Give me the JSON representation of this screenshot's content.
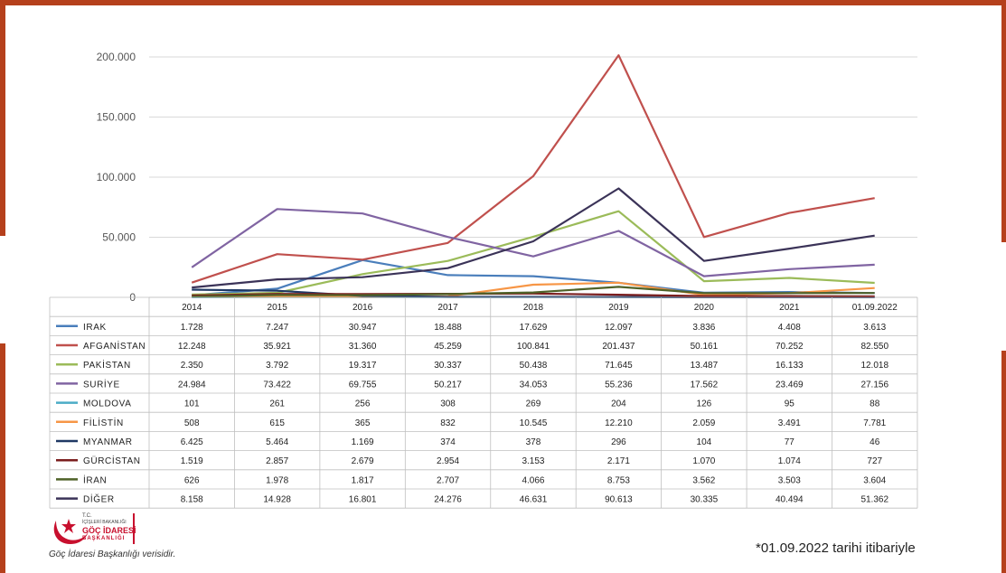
{
  "chart_data": {
    "type": "line",
    "categories": [
      "2014",
      "2015",
      "2016",
      "2017",
      "2018",
      "2019",
      "2020",
      "2021",
      "01.09.2022"
    ],
    "ylim": [
      0,
      200000
    ],
    "yticks": [
      "0",
      "50.000",
      "100.000",
      "150.000",
      "200.000"
    ],
    "grid": true,
    "legend": "table-below",
    "series": [
      {
        "name": "IRAK",
        "color": "#4a7ebb",
        "values": [
          1728,
          7247,
          30947,
          18488,
          17629,
          12097,
          3836,
          4408,
          3613
        ],
        "labels": [
          "1.728",
          "7.247",
          "30.947",
          "18.488",
          "17.629",
          "12.097",
          "3.836",
          "4.408",
          "3.613"
        ]
      },
      {
        "name": "AFGANİSTAN",
        "color": "#c0504d",
        "values": [
          12248,
          35921,
          31360,
          45259,
          100841,
          201437,
          50161,
          70252,
          82550
        ],
        "labels": [
          "12.248",
          "35.921",
          "31.360",
          "45.259",
          "100.841",
          "201.437",
          "50.161",
          "70.252",
          "82.550"
        ]
      },
      {
        "name": "PAKİSTAN",
        "color": "#9bbb59",
        "values": [
          2350,
          3792,
          19317,
          30337,
          50438,
          71645,
          13487,
          16133,
          12018
        ],
        "labels": [
          "2.350",
          "3.792",
          "19.317",
          "30.337",
          "50.438",
          "71.645",
          "13.487",
          "16.133",
          "12.018"
        ]
      },
      {
        "name": "SURİYE",
        "color": "#8064a2",
        "values": [
          24984,
          73422,
          69755,
          50217,
          34053,
          55236,
          17562,
          23469,
          27156
        ],
        "labels": [
          "24.984",
          "73.422",
          "69.755",
          "50.217",
          "34.053",
          "55.236",
          "17.562",
          "23.469",
          "27.156"
        ]
      },
      {
        "name": "MOLDOVA",
        "color": "#4bacc6",
        "values": [
          101,
          261,
          256,
          308,
          269,
          204,
          126,
          95,
          88
        ],
        "labels": [
          "101",
          "261",
          "256",
          "308",
          "269",
          "204",
          "126",
          "95",
          "88"
        ]
      },
      {
        "name": "FİLİSTİN",
        "color": "#f79646",
        "values": [
          508,
          615,
          365,
          832,
          10545,
          12210,
          2059,
          3491,
          7781
        ],
        "labels": [
          "508",
          "615",
          "365",
          "832",
          "10.545",
          "12.210",
          "2.059",
          "3.491",
          "7.781"
        ]
      },
      {
        "name": "MYANMAR",
        "color": "#1f3864",
        "values": [
          6425,
          5464,
          1169,
          374,
          378,
          296,
          104,
          77,
          46
        ],
        "labels": [
          "6.425",
          "5.464",
          "1.169",
          "374",
          "378",
          "296",
          "104",
          "77",
          "46"
        ]
      },
      {
        "name": "GÜRCİSTAN",
        "color": "#7b1e1e",
        "values": [
          1519,
          2857,
          2679,
          2954,
          3153,
          2171,
          1070,
          1074,
          727
        ],
        "labels": [
          "1.519",
          "2.857",
          "2.679",
          "2.954",
          "3.153",
          "2.171",
          "1.070",
          "1.074",
          "727"
        ]
      },
      {
        "name": "İRAN",
        "color": "#4f6228",
        "values": [
          626,
          1978,
          1817,
          2707,
          4066,
          8753,
          3562,
          3503,
          3604
        ],
        "labels": [
          "626",
          "1.978",
          "1.817",
          "2.707",
          "4.066",
          "8.753",
          "3.562",
          "3.503",
          "3.604"
        ]
      },
      {
        "name": "DİĞER",
        "color": "#3b3358",
        "values": [
          8158,
          14928,
          16801,
          24276,
          46631,
          90613,
          30335,
          40494,
          51362
        ],
        "labels": [
          "8.158",
          "14.928",
          "16.801",
          "24.276",
          "46.631",
          "90.613",
          "30.335",
          "40.494",
          "51.362"
        ]
      }
    ]
  },
  "logo": {
    "line1": "T.C.",
    "line2": "İÇİŞLERİ BAKANLIĞI",
    "line3": "GÖÇ İDARESİ",
    "line4": "BAŞKANLIĞI",
    "source_note": "Göç İdaresi Başkanlığı verisidir.",
    "color": "#c8102e"
  },
  "footnote": "*01.09.2022 tarihi itibariyle",
  "colors": {
    "frame": "#b5401c",
    "grid": "#d9d9d9"
  }
}
